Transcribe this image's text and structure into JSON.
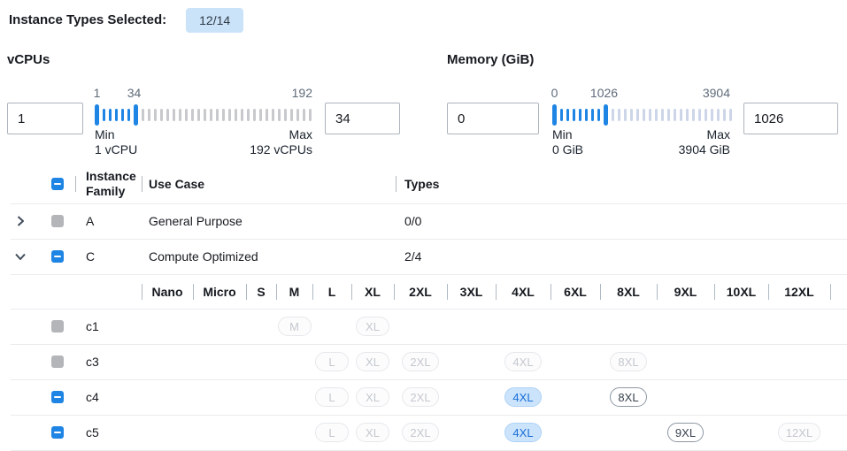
{
  "selected_summary": {
    "label": "Instance Types Selected:",
    "badge": "12/14"
  },
  "filters": [
    {
      "title": "vCPUs",
      "low_input": "1",
      "high_input": "34",
      "slider": {
        "range_min": 1,
        "range_max": 192,
        "low_value": 1,
        "high_value": 34,
        "low_label": "1",
        "high_label": "34",
        "max_label": "192",
        "min_caption": "Min",
        "min_detail": "1 vCPU",
        "max_caption": "Max",
        "max_detail": "192 vCPUs"
      }
    },
    {
      "title": "Memory (GiB)",
      "low_input": "0",
      "high_input": "1026",
      "slider": {
        "range_min": 0,
        "range_max": 3904,
        "low_value": 0,
        "high_value": 1026,
        "low_label": "0",
        "high_label": "1026",
        "max_label": "3904",
        "min_caption": "Min",
        "min_detail": "0 GiB",
        "max_caption": "Max",
        "max_detail": "3904 GiB"
      }
    }
  ],
  "table": {
    "header": {
      "family": "Instance Family",
      "use_case": "Use Case",
      "types": "Types"
    },
    "size_columns": [
      "Nano",
      "Micro",
      "S",
      "M",
      "L",
      "XL",
      "2XL",
      "3XL",
      "4XL",
      "6XL",
      "8XL",
      "9XL",
      "10XL",
      "12XL"
    ],
    "family_rows": [
      {
        "name": "A",
        "use_case": "General Purpose",
        "types": "0/0",
        "checkbox_state": "disabled",
        "expanded": false
      },
      {
        "name": "C",
        "use_case": "Compute Optimized",
        "types": "2/4",
        "checkbox_state": "indeterminate",
        "expanded": true
      }
    ],
    "instance_rows": [
      {
        "name": "c1",
        "checkbox_state": "disabled",
        "pills": [
          {
            "size": "M",
            "state": "disabled"
          },
          {
            "size": "XL",
            "state": "disabled"
          }
        ]
      },
      {
        "name": "c3",
        "checkbox_state": "disabled",
        "pills": [
          {
            "size": "L",
            "state": "disabled"
          },
          {
            "size": "XL",
            "state": "disabled"
          },
          {
            "size": "2XL",
            "state": "disabled"
          },
          {
            "size": "4XL",
            "state": "disabled"
          },
          {
            "size": "8XL",
            "state": "disabled"
          }
        ]
      },
      {
        "name": "c4",
        "checkbox_state": "indeterminate",
        "pills": [
          {
            "size": "L",
            "state": "disabled"
          },
          {
            "size": "XL",
            "state": "disabled"
          },
          {
            "size": "2XL",
            "state": "disabled"
          },
          {
            "size": "4XL",
            "state": "selected"
          },
          {
            "size": "8XL",
            "state": "available"
          }
        ]
      },
      {
        "name": "c5",
        "checkbox_state": "indeterminate",
        "pills": [
          {
            "size": "L",
            "state": "disabled"
          },
          {
            "size": "XL",
            "state": "disabled"
          },
          {
            "size": "2XL",
            "state": "disabled"
          },
          {
            "size": "4XL",
            "state": "selected"
          },
          {
            "size": "9XL",
            "state": "available"
          },
          {
            "size": "12XL",
            "state": "disabled"
          }
        ]
      }
    ]
  },
  "colors": {
    "accent_blue": "#1f85e5",
    "badge_bg": "#cbe3f9",
    "badge_text": "#2d3a46",
    "selected_pill_bg": "#cce4fb",
    "selected_pill_text": "#176ed6",
    "selected_pill_border": "#add2f7",
    "disabled_checkbox_grey": "#b3b5b9",
    "tick_inactive_grey": "#c8c9cc",
    "tick_inactive_blue_grey": "#ccd6e8"
  }
}
